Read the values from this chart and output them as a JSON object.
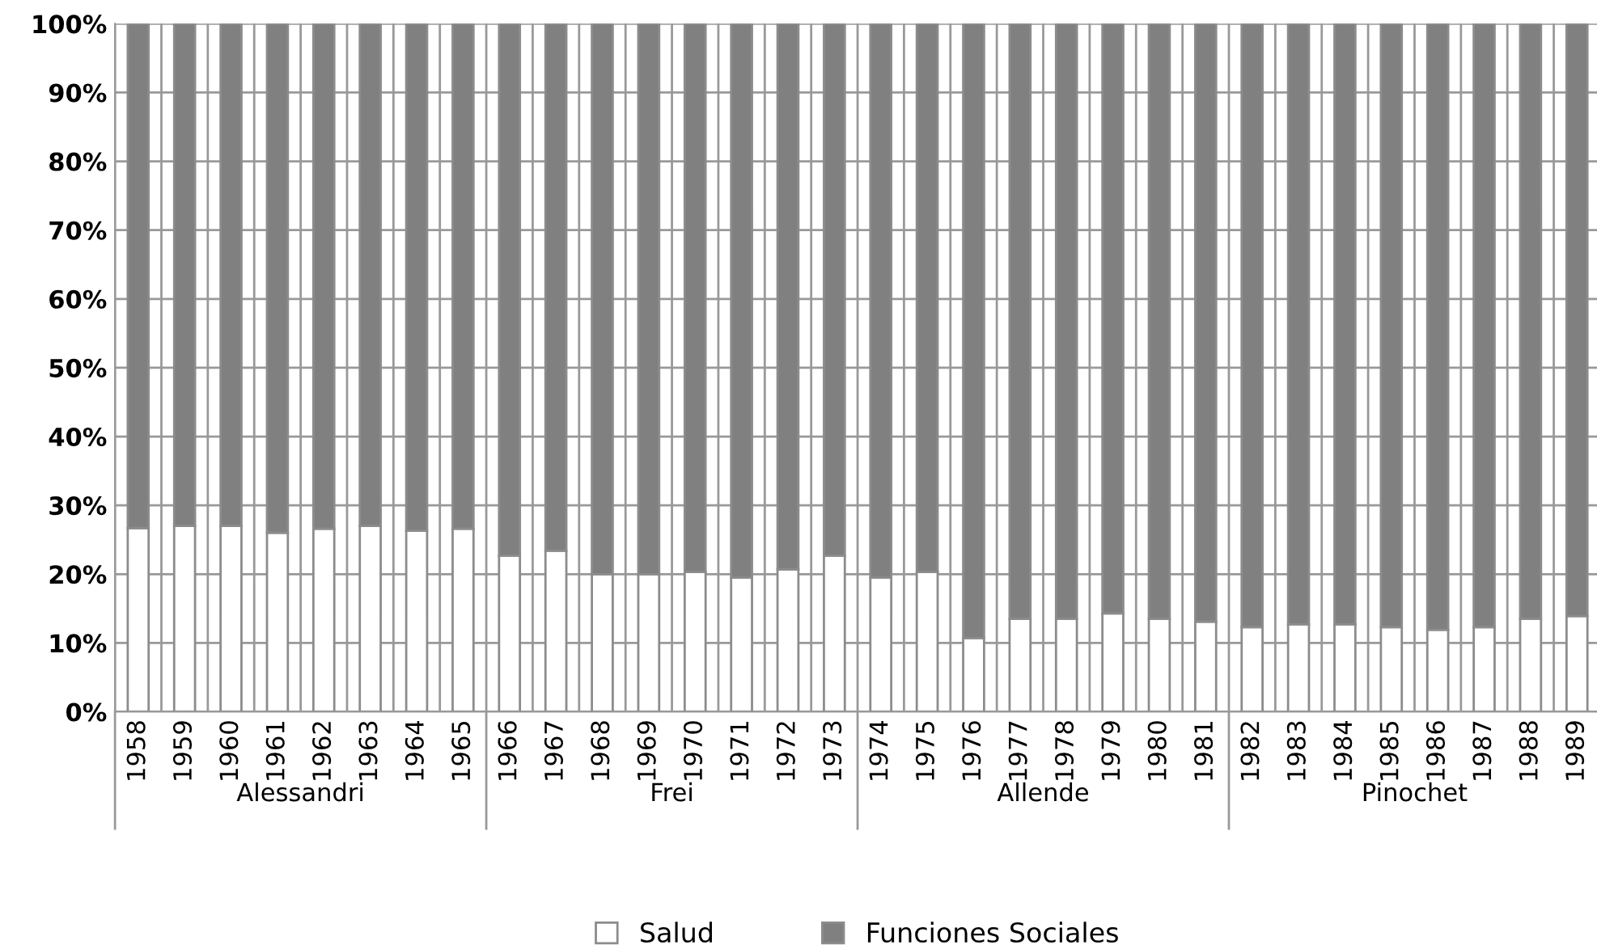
{
  "chart_data": {
    "type": "bar",
    "stacked": true,
    "categories": [
      "1958",
      "1959",
      "1960",
      "1961",
      "1962",
      "1963",
      "1964",
      "1965",
      "1966",
      "1967",
      "1968",
      "1969",
      "1970",
      "1971",
      "1972",
      "1973",
      "1974",
      "1975",
      "1976",
      "1977",
      "1978",
      "1979",
      "1980",
      "1981",
      "1982",
      "1983",
      "1984",
      "1985",
      "1986",
      "1987",
      "1988",
      "1989"
    ],
    "series": [
      {
        "name": "Salud",
        "color": "#ffffff",
        "values": [
          26.7,
          27,
          27,
          26,
          26.6,
          27,
          26.3,
          26.6,
          22.7,
          23.4,
          20,
          20,
          20.3,
          19.5,
          20.7,
          22.7,
          19.5,
          20.3,
          10.7,
          13.5,
          13.5,
          14.3,
          13.5,
          13.1,
          12.3,
          12.7,
          12.7,
          12.3,
          11.9,
          12.3,
          13.5,
          13.9
        ]
      },
      {
        "name": "Funciones Sociales",
        "color": "#808080",
        "values": [
          73.3,
          73,
          73,
          74,
          73.4,
          73,
          73.7,
          73.4,
          77.3,
          76.6,
          80,
          80,
          79.7,
          80.5,
          79.3,
          77.3,
          80.5,
          79.7,
          89.3,
          86.5,
          86.5,
          85.7,
          86.5,
          86.9,
          87.7,
          87.3,
          87.3,
          87.7,
          88.1,
          87.7,
          86.5,
          86.1
        ]
      }
    ],
    "ylim": [
      0,
      100
    ],
    "yticks": [
      {
        "value": 0,
        "label": "0%"
      },
      {
        "value": 10,
        "label": "10%"
      },
      {
        "value": 20,
        "label": "20%"
      },
      {
        "value": 30,
        "label": "30%"
      },
      {
        "value": 40,
        "label": "40%"
      },
      {
        "value": 50,
        "label": "50%"
      },
      {
        "value": 60,
        "label": "60%"
      },
      {
        "value": 70,
        "label": "70%"
      },
      {
        "value": 80,
        "label": "80%"
      },
      {
        "value": 90,
        "label": "90%"
      },
      {
        "value": 100,
        "label": "100%"
      }
    ],
    "grid": true,
    "legend": "bottom",
    "annotations": [
      "Alessandri",
      "Frei",
      "Allende",
      "Pinochet"
    ]
  }
}
